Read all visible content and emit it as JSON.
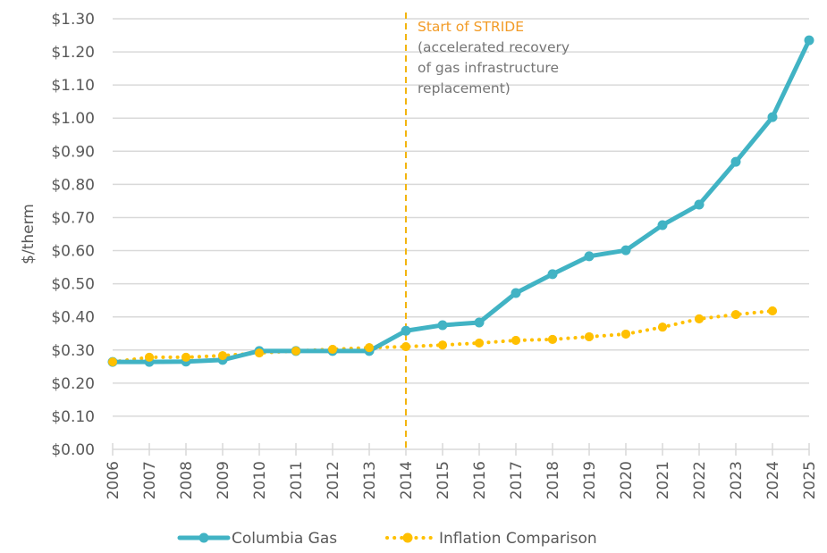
{
  "chart_data": {
    "type": "line",
    "title": "",
    "xlabel": "",
    "ylabel": "$/therm",
    "x": [
      "2006",
      "2007",
      "2008",
      "2009",
      "2010",
      "2011",
      "2012",
      "2013",
      "2014",
      "2015",
      "2016",
      "2017",
      "2018",
      "2019",
      "2020",
      "2021",
      "2022",
      "2023",
      "2024",
      "2025"
    ],
    "ylim": [
      0,
      1.3
    ],
    "yticks": [
      0,
      0.1,
      0.2,
      0.3,
      0.4,
      0.5,
      0.6,
      0.7,
      0.8,
      0.9,
      1.0,
      1.1,
      1.2,
      1.3
    ],
    "ytick_labels": [
      "$0.00",
      "$0.10",
      "$0.20",
      "$0.30",
      "$0.40",
      "$0.50",
      "$0.60",
      "$0.70",
      "$0.80",
      "$0.90",
      "$1.00",
      "$1.10",
      "$1.20",
      "$1.30"
    ],
    "grid": true,
    "series": [
      {
        "name": "Columbia Gas",
        "color": "#41B3C4",
        "style": "solid",
        "values": [
          0.264,
          0.264,
          0.265,
          0.27,
          0.297,
          0.297,
          0.297,
          0.297,
          0.358,
          0.375,
          0.383,
          0.472,
          0.529,
          0.583,
          0.601,
          0.677,
          0.739,
          0.868,
          1.003,
          1.235
        ]
      },
      {
        "name": "Inflation Comparison",
        "color": "#FFC000",
        "style": "dotted",
        "values": [
          0.264,
          0.278,
          0.278,
          0.283,
          0.291,
          0.297,
          0.302,
          0.307,
          0.31,
          0.315,
          0.321,
          0.329,
          0.332,
          0.34,
          0.348,
          0.369,
          0.394,
          0.407,
          0.418,
          null
        ]
      }
    ],
    "annotation": {
      "x": "2014",
      "line_color": "#F2B50F",
      "title": "Start of STRIDE",
      "title_color": "#F29B26",
      "lines": [
        "(accelerated recovery",
        "of gas infrastructure",
        "replacement)"
      ]
    },
    "legend": {
      "placement": "bottom",
      "entries": [
        "Columbia Gas",
        "Inflation Comparison"
      ]
    }
  }
}
